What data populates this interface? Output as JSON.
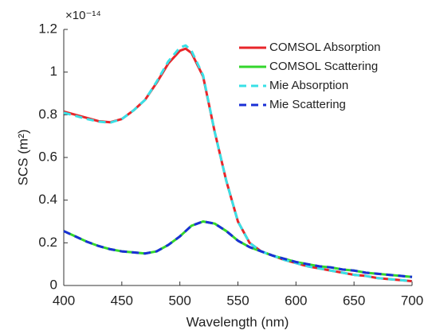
{
  "chart_data": {
    "type": "line",
    "x_label": "Wavelength (nm)",
    "y_label": "SCS (m²)",
    "y_multiplier": "×10⁻¹⁴",
    "x": [
      400,
      410,
      420,
      430,
      440,
      450,
      460,
      470,
      480,
      490,
      500,
      505,
      510,
      520,
      530,
      540,
      550,
      560,
      570,
      580,
      590,
      600,
      610,
      620,
      630,
      640,
      650,
      660,
      670,
      680,
      690,
      700
    ],
    "series": [
      {
        "name": "COMSOL Absorption",
        "color": "#e8262a",
        "dash": false,
        "values": [
          0.815,
          0.8,
          0.785,
          0.77,
          0.765,
          0.78,
          0.82,
          0.87,
          0.95,
          1.04,
          1.1,
          1.11,
          1.09,
          0.98,
          0.72,
          0.49,
          0.3,
          0.2,
          0.16,
          0.14,
          0.12,
          0.105,
          0.09,
          0.08,
          0.07,
          0.06,
          0.05,
          0.045,
          0.035,
          0.03,
          0.025,
          0.02
        ]
      },
      {
        "name": "COMSOL Scattering",
        "color": "#33d62c",
        "dash": false,
        "values": [
          0.255,
          0.23,
          0.205,
          0.185,
          0.17,
          0.16,
          0.155,
          0.15,
          0.16,
          0.19,
          0.23,
          0.255,
          0.28,
          0.3,
          0.29,
          0.255,
          0.21,
          0.18,
          0.16,
          0.14,
          0.125,
          0.11,
          0.1,
          0.09,
          0.085,
          0.075,
          0.07,
          0.06,
          0.055,
          0.05,
          0.045,
          0.04
        ]
      },
      {
        "name": "Mie Absorption",
        "color": "#38e0e6",
        "dash": true,
        "values": [
          0.81,
          0.795,
          0.78,
          0.768,
          0.763,
          0.78,
          0.82,
          0.87,
          0.955,
          1.05,
          1.115,
          1.125,
          1.1,
          0.985,
          0.72,
          0.49,
          0.3,
          0.2,
          0.16,
          0.14,
          0.12,
          0.105,
          0.09,
          0.08,
          0.07,
          0.06,
          0.05,
          0.045,
          0.035,
          0.03,
          0.025,
          0.02
        ]
      },
      {
        "name": "Mie Scattering",
        "color": "#1a2fd6",
        "dash": true,
        "values": [
          0.255,
          0.23,
          0.205,
          0.185,
          0.17,
          0.16,
          0.155,
          0.15,
          0.16,
          0.19,
          0.23,
          0.255,
          0.28,
          0.3,
          0.29,
          0.255,
          0.21,
          0.18,
          0.16,
          0.14,
          0.125,
          0.11,
          0.1,
          0.09,
          0.085,
          0.075,
          0.07,
          0.06,
          0.055,
          0.05,
          0.045,
          0.04
        ]
      }
    ],
    "xlim": [
      400,
      700
    ],
    "xticks": [
      400,
      450,
      500,
      550,
      600,
      650,
      700
    ],
    "ylim": [
      0,
      1.2
    ],
    "yticks": [
      0,
      0.2,
      0.4,
      0.6,
      0.8,
      1,
      1.2
    ],
    "legend": "top-right"
  }
}
